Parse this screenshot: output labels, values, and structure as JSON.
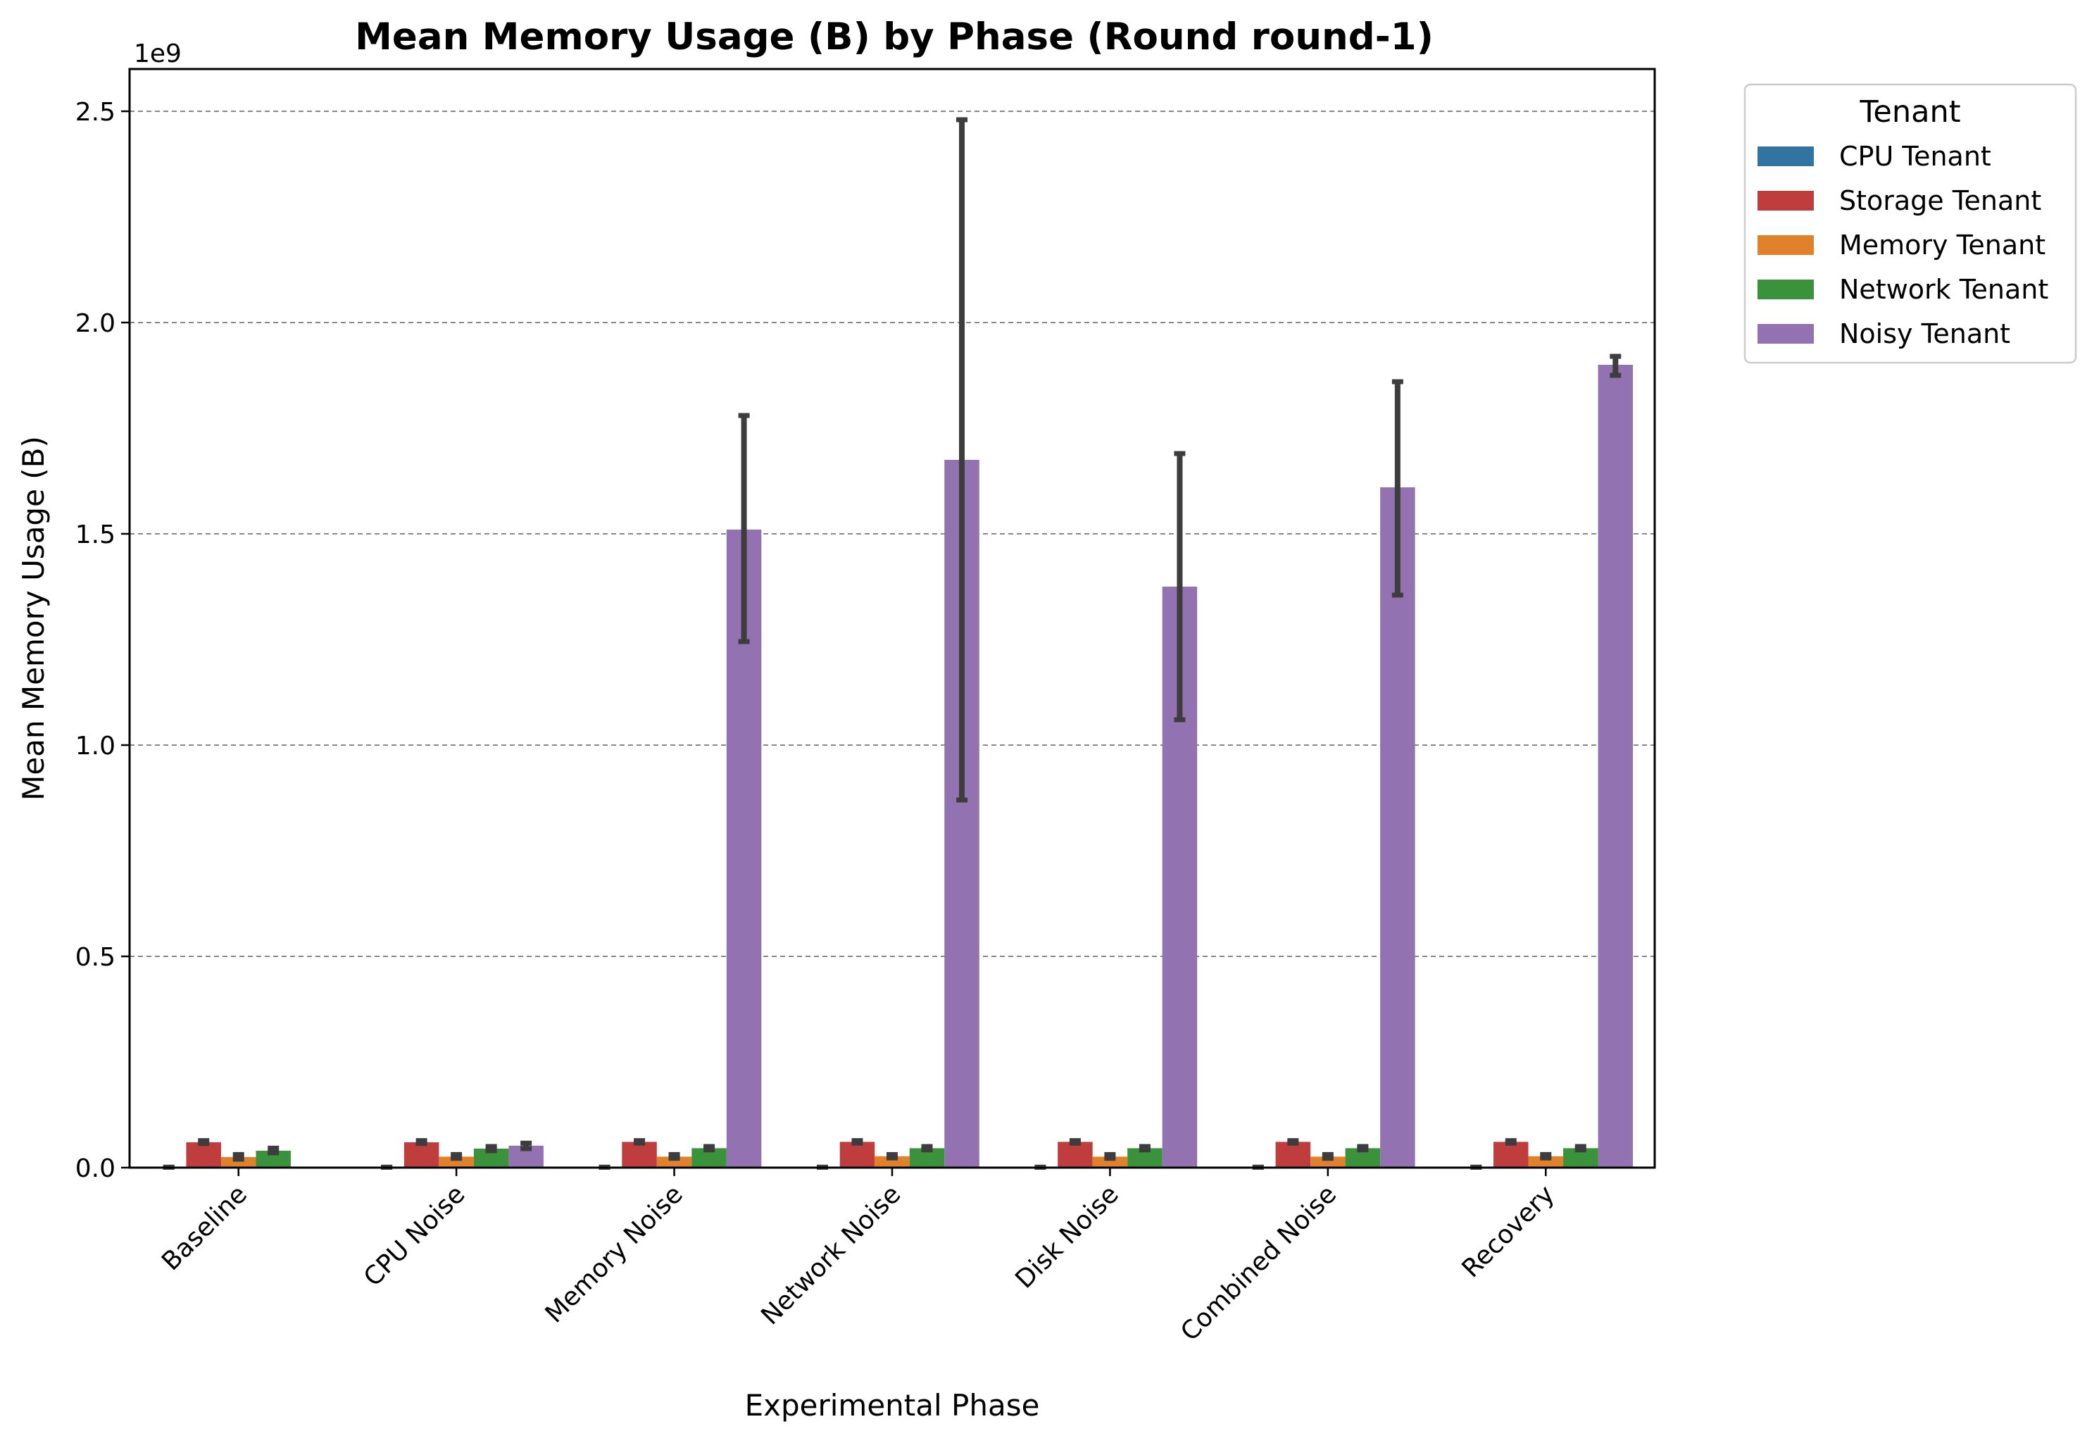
{
  "chart_data": {
    "type": "bar",
    "title": "Mean Memory Usage (B) by Phase (Round round-1)",
    "xlabel": "Experimental Phase",
    "ylabel": "Mean Memory Usage (B)",
    "y_exponent_label": "1e9",
    "y_scale": 1000000000,
    "ylim": [
      0,
      2.6
    ],
    "yticks": [
      0.0,
      0.5,
      1.0,
      1.5,
      2.0,
      2.5
    ],
    "ytick_labels": [
      "0.0",
      "0.5",
      "1.0",
      "1.5",
      "2.0",
      "2.5"
    ],
    "grid": "y-dashed",
    "legend_placement": "outside-top-right",
    "legend_title": "Tenant",
    "categories": [
      "Baseline",
      "CPU Noise",
      "Memory Noise",
      "Network Noise",
      "Disk Noise",
      "Combined Noise",
      "Recovery"
    ],
    "series": [
      {
        "name": "CPU Tenant",
        "color": "#3274a1",
        "values": [
          0.001,
          0.001,
          0.001,
          0.001,
          0.001,
          0.001,
          0.001
        ],
        "err_low": [
          0.001,
          0.001,
          0.001,
          0.001,
          0.001,
          0.001,
          0.001
        ],
        "err_high": [
          0.001,
          0.001,
          0.001,
          0.001,
          0.001,
          0.001,
          0.001
        ]
      },
      {
        "name": "Storage Tenant",
        "color": "#c03d3e",
        "values": [
          0.06,
          0.06,
          0.061,
          0.061,
          0.061,
          0.061,
          0.061
        ],
        "err_low": [
          0.057,
          0.057,
          0.058,
          0.058,
          0.058,
          0.058,
          0.058
        ],
        "err_high": [
          0.064,
          0.064,
          0.064,
          0.064,
          0.064,
          0.064,
          0.064
        ]
      },
      {
        "name": "Memory Tenant",
        "color": "#e1812c",
        "values": [
          0.025,
          0.026,
          0.026,
          0.027,
          0.026,
          0.026,
          0.027
        ],
        "err_low": [
          0.02,
          0.022,
          0.022,
          0.023,
          0.022,
          0.022,
          0.023
        ],
        "err_high": [
          0.031,
          0.031,
          0.031,
          0.031,
          0.031,
          0.031,
          0.031
        ]
      },
      {
        "name": "Network Tenant",
        "color": "#3a923a",
        "values": [
          0.04,
          0.045,
          0.046,
          0.046,
          0.046,
          0.046,
          0.046
        ],
        "err_low": [
          0.035,
          0.04,
          0.042,
          0.042,
          0.042,
          0.042,
          0.042
        ],
        "err_high": [
          0.046,
          0.05,
          0.05,
          0.05,
          0.05,
          0.05,
          0.05
        ]
      },
      {
        "name": "Noisy Tenant",
        "color": "#9372b2",
        "values": [
          0.0,
          0.052,
          1.51,
          1.675,
          1.375,
          1.61,
          1.9
        ],
        "err_low": [
          0.0,
          0.045,
          1.245,
          0.87,
          1.06,
          1.355,
          1.875
        ],
        "err_high": [
          0.0,
          0.058,
          1.78,
          2.48,
          1.69,
          1.86,
          1.92
        ]
      }
    ]
  }
}
